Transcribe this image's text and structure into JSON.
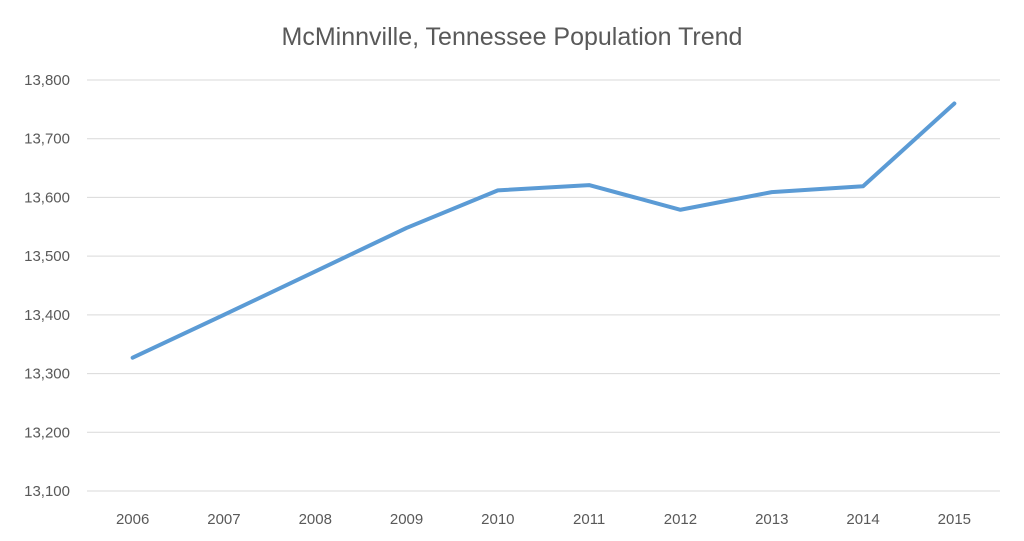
{
  "chart_data": {
    "type": "line",
    "title": "McMinnville, Tennessee Population Trend",
    "xlabel": "",
    "ylabel": "",
    "categories": [
      "2006",
      "2007",
      "2008",
      "2009",
      "2010",
      "2011",
      "2012",
      "2013",
      "2014",
      "2015"
    ],
    "series": [
      {
        "values": [
          13327,
          13400,
          13474,
          13548,
          13612,
          13621,
          13579,
          13609,
          13619,
          13760
        ],
        "color": "#5B9BD5"
      }
    ],
    "ylim": [
      13100,
      13800
    ],
    "yticks": [
      "13,100",
      "13,200",
      "13,300",
      "13,400",
      "13,500",
      "13,600",
      "13,700",
      "13,800"
    ],
    "grid": true,
    "legend": "none"
  }
}
